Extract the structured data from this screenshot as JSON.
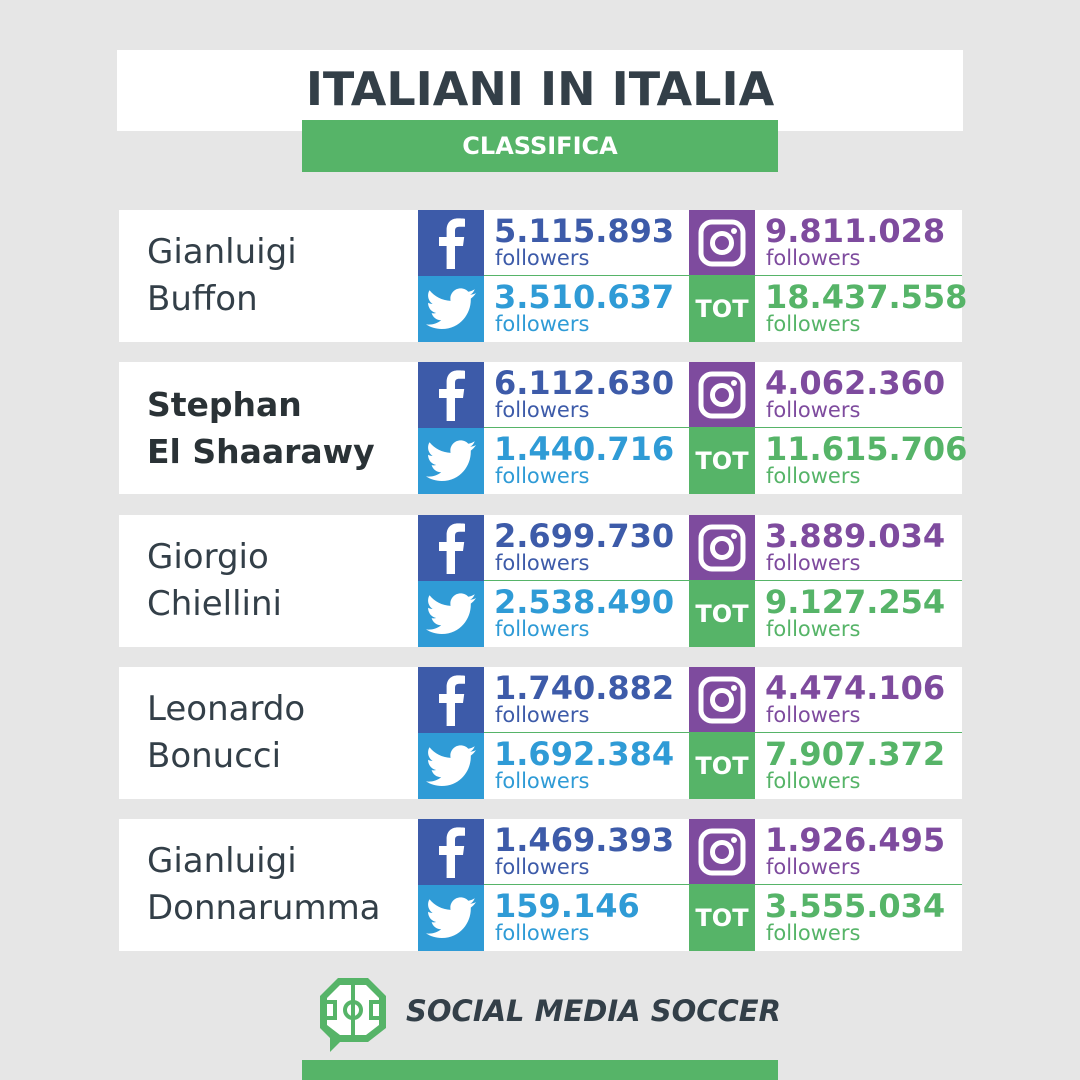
{
  "header": {
    "title": "ITALIANI IN ITALIA",
    "subtitle": "CLASSIFICA"
  },
  "tot_label": "TOT",
  "followers_label": "followers",
  "players": [
    {
      "first": "Gianluigi",
      "last": "Buffon",
      "highlighted": false,
      "facebook": "5.115.893",
      "twitter": "3.510.637",
      "instagram": "9.811.028",
      "total": "18.437.558"
    },
    {
      "first": "Stephan",
      "last": "El Shaarawy",
      "highlighted": true,
      "facebook": "6.112.630",
      "twitter": "1.440.716",
      "instagram": "4.062.360",
      "total": "11.615.706"
    },
    {
      "first": "Giorgio",
      "last": "Chiellini",
      "highlighted": false,
      "facebook": "2.699.730",
      "twitter": "2.538.490",
      "instagram": "3.889.034",
      "total": "9.127.254"
    },
    {
      "first": "Leonardo",
      "last": "Bonucci",
      "highlighted": false,
      "facebook": "1.740.882",
      "twitter": "1.692.384",
      "instagram": "4.474.106",
      "total": "7.907.372"
    },
    {
      "first": "Gianluigi",
      "last": "Donnarumma",
      "highlighted": false,
      "facebook": "1.469.393",
      "twitter": "159.146",
      "instagram": "1.926.495",
      "total": "3.555.034"
    }
  ],
  "icons": {
    "facebook": "facebook-icon",
    "twitter": "twitter-icon",
    "instagram": "instagram-icon",
    "logo": "social-media-soccer-logo"
  },
  "colors": {
    "facebook": "#3d5ba9",
    "twitter": "#2f9bd6",
    "instagram": "#7e4b9e",
    "total": "#56b468",
    "text": "#333f48",
    "background": "#e6e6e6"
  },
  "footer": {
    "brand": "SOCIAL MEDIA SOCCER"
  }
}
